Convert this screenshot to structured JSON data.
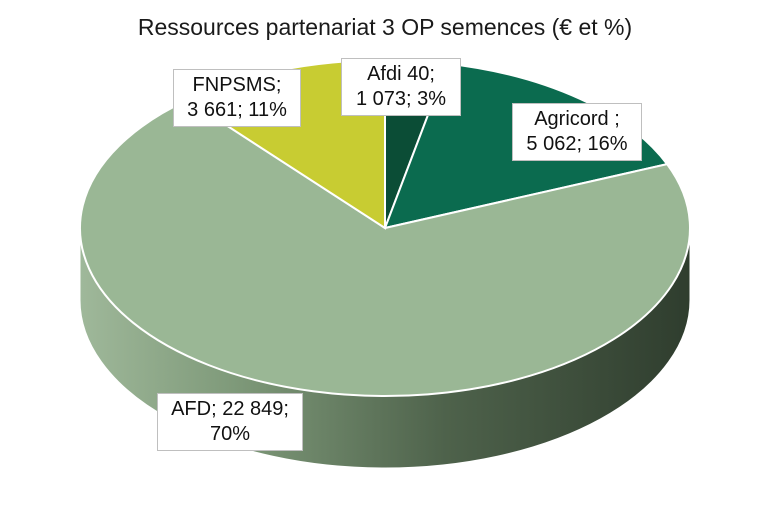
{
  "chart_data": {
    "type": "pie",
    "title": "Ressources partenariat 3 OP semences (€ et %)",
    "slices": [
      {
        "name": "Afdi 40",
        "value": 1073,
        "percent": 3,
        "color": "#0b4d36",
        "label_lines": [
          "Afdi 40;",
          "1 073; 3%"
        ]
      },
      {
        "name": "Agricord",
        "value": 5062,
        "percent": 16,
        "color": "#0b6b4f",
        "label_lines": [
          "Agricord ;",
          "5 062; 16%"
        ]
      },
      {
        "name": "AFD",
        "value": 22849,
        "percent": 70,
        "color": "#9ab795",
        "label_lines": [
          "AFD; 22 849;",
          "70%"
        ]
      },
      {
        "name": "FNPSMS",
        "value": 3661,
        "percent": 11,
        "color": "#c8cc32",
        "label_lines": [
          "FNPSMS;",
          "3 661; 11%"
        ]
      }
    ]
  }
}
